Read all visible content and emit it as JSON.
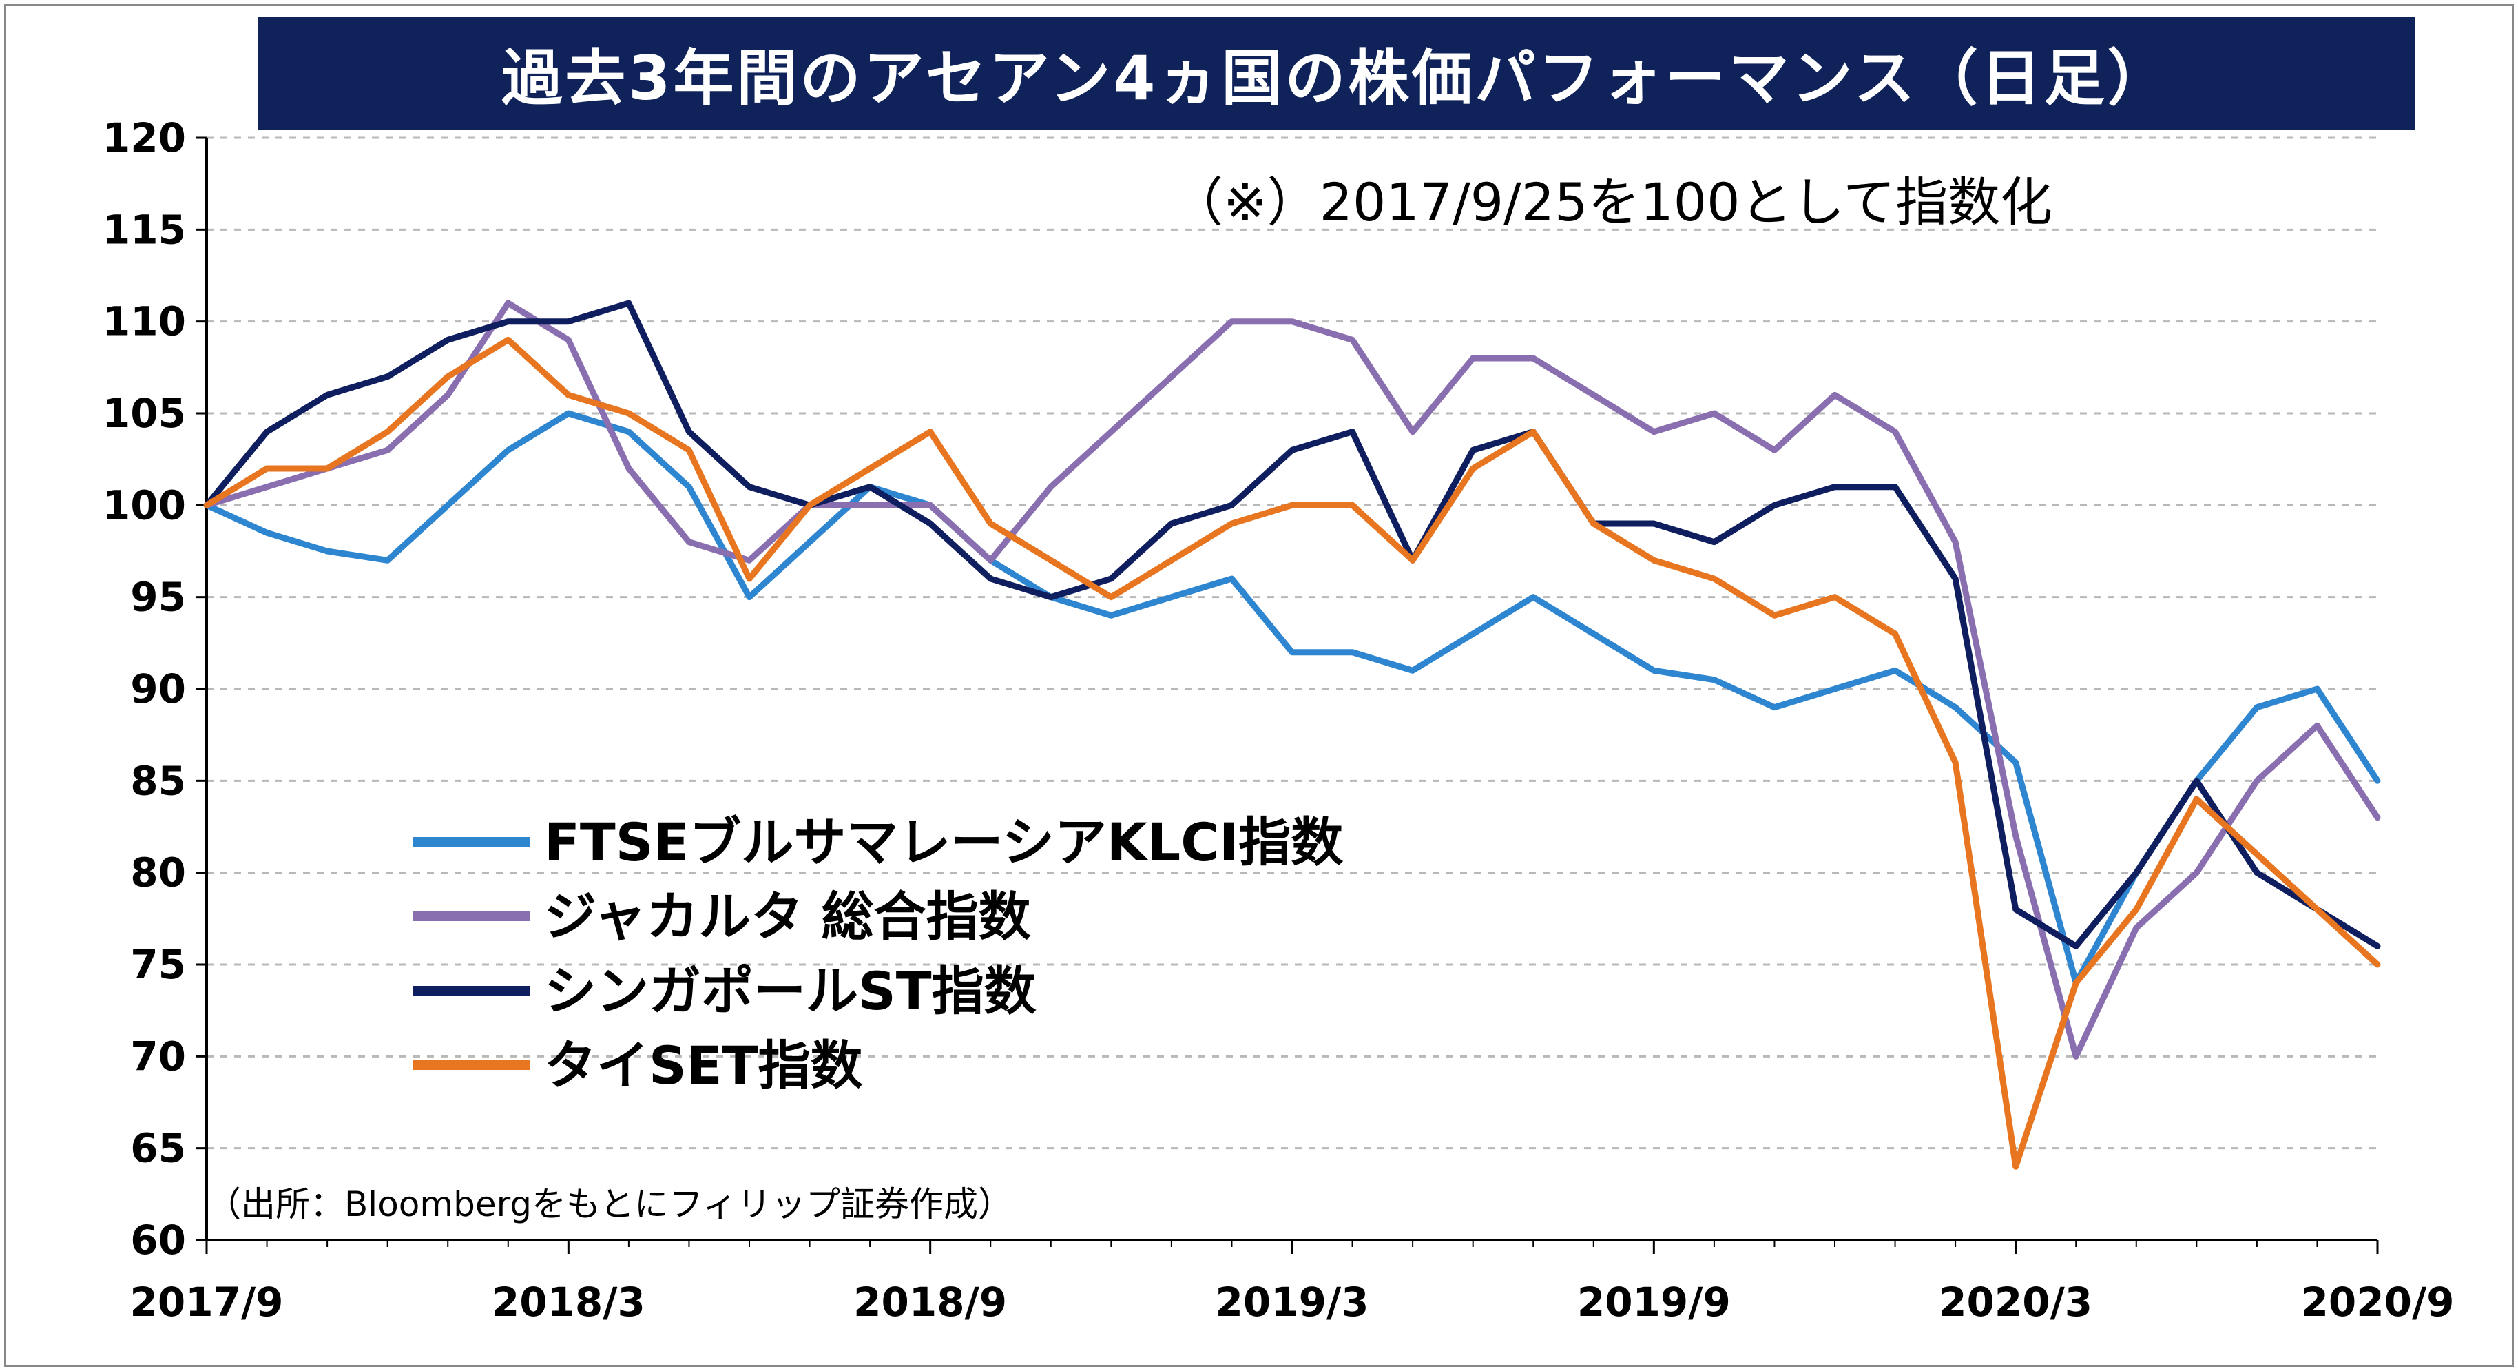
{
  "chart_data": {
    "type": "line",
    "title": "過去3年間のアセアン4ヵ国の株価パフォーマンス（日足）",
    "annotation": "（※）2017/9/25を100として指数化",
    "source": "（出所：Bloombergをもとにフィリップ証券作成）",
    "xlabel": "",
    "ylabel": "",
    "ylim": [
      60,
      120
    ],
    "yticks": [
      "60",
      "65",
      "70",
      "75",
      "80",
      "85",
      "90",
      "95",
      "100",
      "105",
      "110",
      "115",
      "120"
    ],
    "xticks": [
      "2017/9",
      "2018/3",
      "2018/9",
      "2019/3",
      "2019/9",
      "2020/3",
      "2020/9"
    ],
    "grid": "horizontal dashed",
    "legend_position": "lower-left",
    "x": [
      "2017/9",
      "2017/10",
      "2017/11",
      "2017/12",
      "2018/1",
      "2018/2",
      "2018/3",
      "2018/4",
      "2018/5",
      "2018/6",
      "2018/7",
      "2018/8",
      "2018/9",
      "2018/10",
      "2018/11",
      "2018/12",
      "2019/1",
      "2019/2",
      "2019/3",
      "2019/4",
      "2019/5",
      "2019/6",
      "2019/7",
      "2019/8",
      "2019/9",
      "2019/10",
      "2019/11",
      "2019/12",
      "2020/1",
      "2020/2",
      "2020/3",
      "2020/4",
      "2020/5",
      "2020/6",
      "2020/7",
      "2020/8",
      "2020/9"
    ],
    "series": [
      {
        "name": "FTSEブルサマレーシアKLCI指数",
        "color": "#2e86d0",
        "values": [
          100,
          98.5,
          97.5,
          97,
          100,
          103,
          105,
          104,
          101,
          95,
          98,
          101,
          100,
          97,
          95,
          94,
          95,
          96,
          92,
          92,
          91,
          93,
          95,
          93,
          91,
          90.5,
          89,
          90,
          91,
          89,
          86,
          74,
          80,
          85,
          89,
          90,
          85
        ]
      },
      {
        "name": "ジャカルタ 総合指数",
        "color": "#8a6fb0",
        "values": [
          100,
          101,
          102,
          103,
          106,
          111,
          109,
          102,
          98,
          97,
          100,
          100,
          100,
          97,
          101,
          104,
          107,
          110,
          110,
          109,
          104,
          108,
          108,
          106,
          104,
          105,
          103,
          106,
          104,
          98,
          82,
          70,
          77,
          80,
          85,
          88,
          83
        ]
      },
      {
        "name": "シンガポールST指数",
        "color": "#0f1e5e",
        "values": [
          100,
          104,
          106,
          107,
          109,
          110,
          110,
          111,
          104,
          101,
          100,
          101,
          99,
          96,
          95,
          96,
          99,
          100,
          103,
          104,
          97,
          103,
          104,
          99,
          99,
          98,
          100,
          101,
          101,
          96,
          78,
          76,
          80,
          85,
          80,
          78,
          76
        ]
      },
      {
        "name": "タイSET指数",
        "color": "#e8751f",
        "values": [
          100,
          102,
          102,
          104,
          107,
          109,
          106,
          105,
          103,
          96,
          100,
          102,
          104,
          99,
          97,
          95,
          97,
          99,
          100,
          100,
          97,
          102,
          104,
          99,
          97,
          96,
          94,
          95,
          93,
          86,
          64,
          74,
          78,
          84,
          81,
          78,
          75
        ]
      }
    ]
  }
}
